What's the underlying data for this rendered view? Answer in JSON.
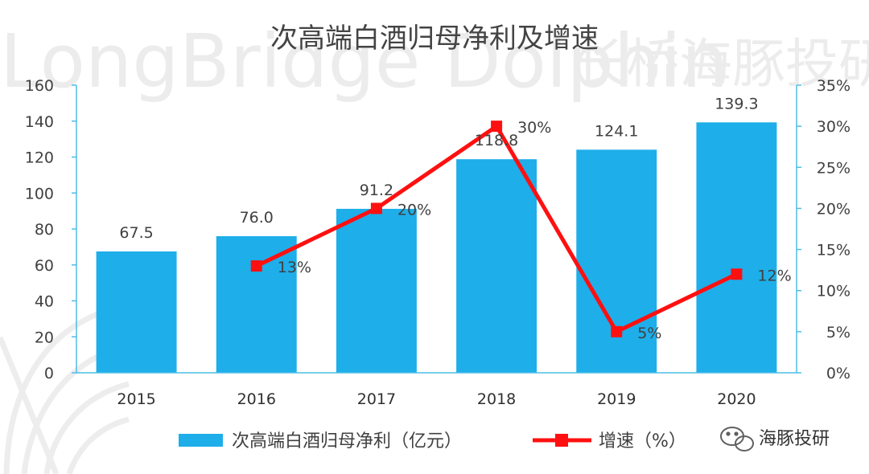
{
  "watermark": {
    "text_en": "LongBridge Dolphin",
    "text_cn": "长桥海豚投研"
  },
  "brand": {
    "name": "海豚投研"
  },
  "colors": {
    "bar": "#1eaeea",
    "line": "#ff1010",
    "axis": "#4dbde8",
    "text": "#404040"
  },
  "chart_data": {
    "type": "bar",
    "title": "次高端白酒归母净利及增速",
    "categories": [
      "2015",
      "2016",
      "2017",
      "2018",
      "2019",
      "2020"
    ],
    "series": [
      {
        "name": "次高端白酒归母净利（亿元）",
        "type": "bar",
        "axis": "left",
        "values": [
          67.5,
          76.0,
          91.2,
          118.8,
          124.1,
          139.3
        ],
        "labels": [
          "67.5",
          "76.0",
          "91.2",
          "118.8",
          "124.1",
          "139.3"
        ]
      },
      {
        "name": "增速（%）",
        "type": "line",
        "axis": "right",
        "values": [
          null,
          13,
          20,
          30,
          5,
          12
        ],
        "labels": [
          "",
          "13%",
          "20%",
          "30%",
          "5%",
          "12%"
        ]
      }
    ],
    "y_left": {
      "min": 0,
      "max": 160,
      "ticks": [
        "0",
        "20",
        "40",
        "60",
        "80",
        "100",
        "120",
        "140",
        "160"
      ]
    },
    "y_right": {
      "min": 0,
      "max": 35,
      "ticks": [
        "0%",
        "5%",
        "10%",
        "15%",
        "20%",
        "25%",
        "30%",
        "35%"
      ]
    },
    "grid": false,
    "legend": "bottom"
  }
}
